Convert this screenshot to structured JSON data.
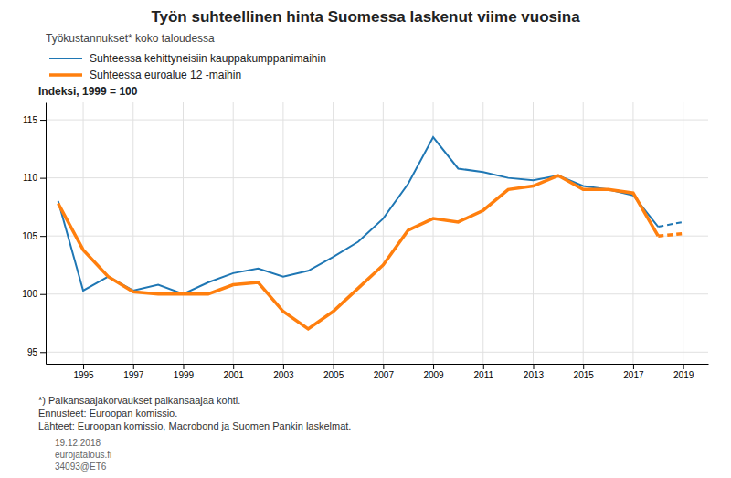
{
  "chart_data": {
    "type": "line",
    "title": "Työn suhteellinen hinta Suomessa laskenut viime vuosina",
    "subtitle": "Työkustannukset* koko taloudessa",
    "ylabel": "Indeksi, 1999 = 100",
    "annotations": [
      "*) Palkansaajakorvaukset palkansaajaa kohti.",
      "Ennusteet: Euroopan komissio.",
      "Lähteet: Euroopan komissio, Macrobond ja Suomen Pankin laskelmat.",
      "19.12.2018",
      "eurojatalous.fi",
      "34093@ET6"
    ],
    "x": [
      1994,
      1995,
      1996,
      1997,
      1998,
      1999,
      2000,
      2001,
      2002,
      2003,
      2004,
      2005,
      2006,
      2007,
      2008,
      2009,
      2010,
      2011,
      2012,
      2013,
      2014,
      2015,
      2016,
      2017,
      2018,
      2019
    ],
    "forecast_start": 2018,
    "series": [
      {
        "name": "Suhteessa kehittyneisiin kauppakumppanimaihin",
        "values": [
          108.0,
          100.3,
          101.5,
          100.3,
          100.8,
          100.0,
          101.0,
          101.8,
          102.2,
          101.5,
          102.0,
          103.2,
          104.5,
          106.5,
          109.5,
          113.5,
          110.8,
          110.5,
          110.0,
          109.8,
          110.2,
          109.3,
          109.0,
          108.5,
          105.8,
          106.2
        ]
      },
      {
        "name": "Suhteessa euroalue 12 -maihin",
        "values": [
          107.8,
          103.8,
          101.5,
          100.2,
          100.0,
          100.0,
          100.0,
          100.8,
          101.0,
          98.5,
          97.0,
          98.5,
          100.5,
          102.5,
          105.5,
          106.5,
          106.2,
          107.2,
          109.0,
          109.3,
          110.2,
          109.0,
          109.0,
          108.7,
          105.0,
          105.2
        ]
      }
    ],
    "xlim": [
      1993.5,
      2020.0
    ],
    "xticks": [
      1995,
      1997,
      1999,
      2001,
      2003,
      2005,
      2007,
      2009,
      2011,
      2013,
      2015,
      2017,
      2019
    ],
    "ylim": [
      94.0,
      116.5
    ],
    "yticks": [
      95,
      100,
      105,
      110,
      115
    ],
    "grid": true,
    "legend": "upper left"
  }
}
